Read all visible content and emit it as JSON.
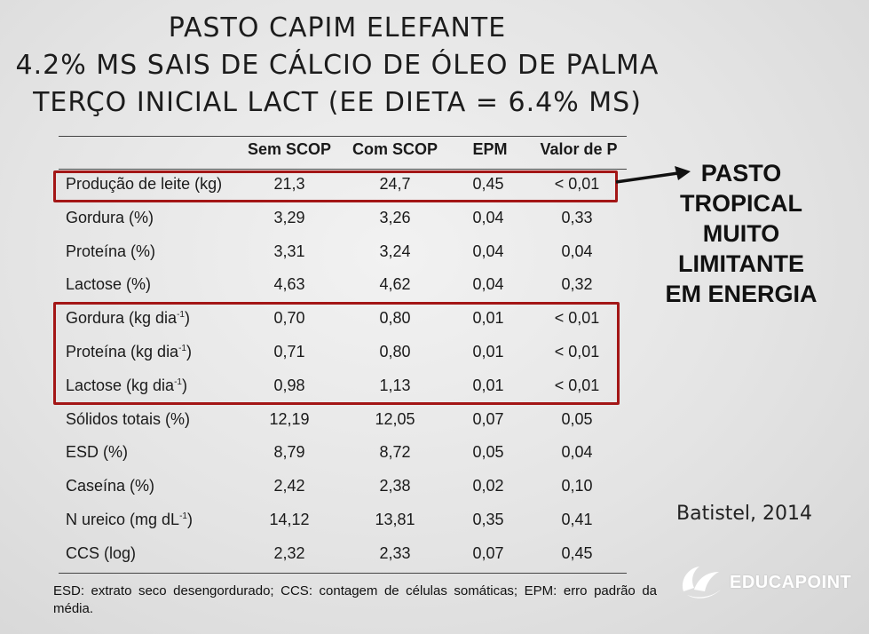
{
  "title": {
    "line1": "PASTO CAPIM ELEFANTE",
    "line2": "4.2% MS SAIS DE CÁLCIO DE ÓLEO DE PALMA",
    "line3": "TERÇO INICIAL LACT (EE DIETA = 6.4% MS)"
  },
  "table": {
    "headers": [
      "Sem SCOP",
      "Com SCOP",
      "EPM",
      "Valor de P"
    ],
    "rows": [
      {
        "label": "Produção de leite (kg)",
        "sup": "",
        "sem": "21,3",
        "com": "24,7",
        "epm": "0,45",
        "p": "< 0,01"
      },
      {
        "label": "Gordura (%)",
        "sup": "",
        "sem": "3,29",
        "com": "3,26",
        "epm": "0,04",
        "p": "0,33"
      },
      {
        "label": "Proteína (%)",
        "sup": "",
        "sem": "3,31",
        "com": "3,24",
        "epm": "0,04",
        "p": "0,04"
      },
      {
        "label": "Lactose (%)",
        "sup": "",
        "sem": "4,63",
        "com": "4,62",
        "epm": "0,04",
        "p": "0,32"
      },
      {
        "label": "Gordura (kg dia",
        "sup": "-1",
        "suffix": ")",
        "sem": "0,70",
        "com": "0,80",
        "epm": "0,01",
        "p": "< 0,01"
      },
      {
        "label": "Proteína (kg dia",
        "sup": "-1",
        "suffix": ")",
        "sem": "0,71",
        "com": "0,80",
        "epm": "0,01",
        "p": "< 0,01"
      },
      {
        "label": "Lactose (kg dia",
        "sup": "-1",
        "suffix": ")",
        "sem": "0,98",
        "com": "1,13",
        "epm": "0,01",
        "p": "< 0,01"
      },
      {
        "label": "Sólidos totais (%)",
        "sup": "",
        "sem": "12,19",
        "com": "12,05",
        "epm": "0,07",
        "p": "0,05"
      },
      {
        "label": "ESD (%)",
        "sup": "",
        "sem": "8,79",
        "com": "8,72",
        "epm": "0,05",
        "p": "0,04"
      },
      {
        "label": "Caseína (%)",
        "sup": "",
        "sem": "2,42",
        "com": "2,38",
        "epm": "0,02",
        "p": "0,10"
      },
      {
        "label": "N ureico (mg dL",
        "sup": "-1",
        "suffix": ")",
        "sem": "14,12",
        "com": "13,81",
        "epm": "0,35",
        "p": "0,41"
      },
      {
        "label": "CCS (log)",
        "sup": "",
        "sem": "2,32",
        "com": "2,33",
        "epm": "0,07",
        "p": "0,45"
      }
    ]
  },
  "annotation": {
    "lines": [
      "PASTO",
      "TROPICAL",
      "MUITO",
      "LIMITANTE",
      "EM ENERGIA"
    ],
    "arrow_icon": "arrow-left-icon",
    "highlight_color": "#a31616"
  },
  "citation": "Batistel, 2014",
  "footnote": "ESD: extrato seco desengordurado; CCS: contagem de células somáticas; EPM: erro padrão da média.",
  "logo": {
    "text": "EDUCAPOINT",
    "icon": "globe-logo-icon"
  }
}
